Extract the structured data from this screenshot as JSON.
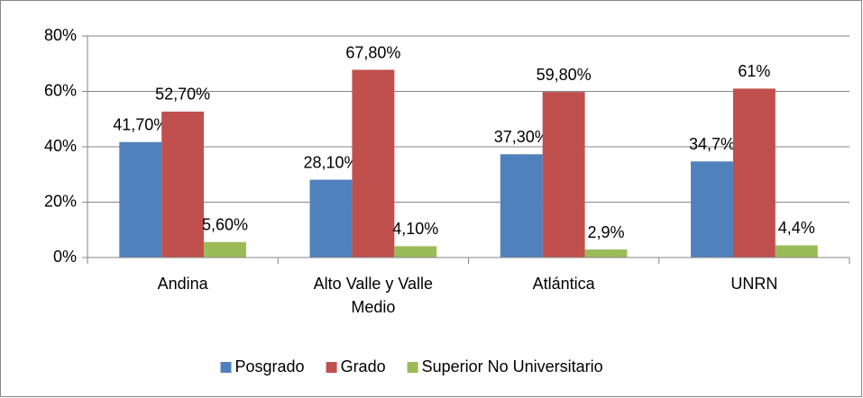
{
  "chart_data": {
    "type": "bar",
    "categories": [
      "Andina",
      "Alto Valle y Valle Medio",
      "Atlántica",
      "UNRN"
    ],
    "series": [
      {
        "name": "Posgrado",
        "color": "#4f81bd",
        "values": [
          41.7,
          28.1,
          37.3,
          34.7
        ],
        "value_labels": [
          "41,70%",
          "28,10%",
          "37,30%",
          "34,7%"
        ]
      },
      {
        "name": "Grado",
        "color": "#c0504d",
        "values": [
          52.7,
          67.8,
          59.8,
          61
        ],
        "value_labels": [
          "52,70%",
          "67,80%",
          "59,80%",
          "61%"
        ]
      },
      {
        "name": "Superior No Universitario",
        "color": "#9bbb59",
        "values": [
          5.6,
          4.1,
          2.9,
          4.4
        ],
        "value_labels": [
          "5,60%",
          "4,10%",
          "2,9%",
          "4,4%"
        ]
      }
    ],
    "ylim": [
      0,
      80
    ],
    "yticks": [
      {
        "value": 0,
        "label": "0%"
      },
      {
        "value": 20,
        "label": "20%"
      },
      {
        "value": 40,
        "label": "40%"
      },
      {
        "value": 60,
        "label": "60%"
      },
      {
        "value": 80,
        "label": "80%"
      }
    ],
    "grid": true,
    "legend": "bottom"
  }
}
